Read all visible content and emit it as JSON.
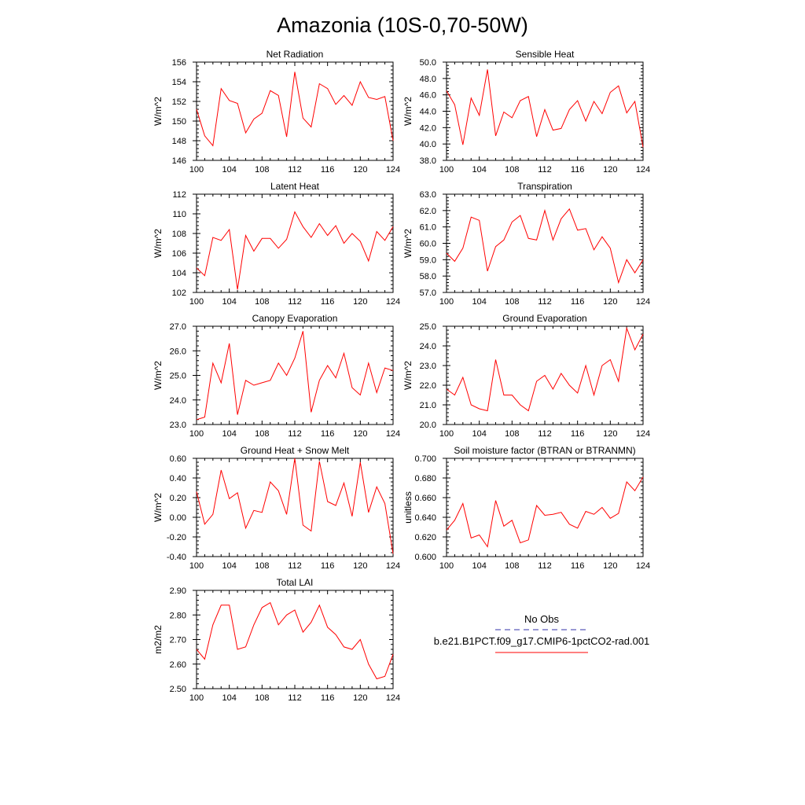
{
  "title": "Amazonia (10S-0,70-50W)",
  "colors": {
    "line": "#ff0000",
    "obs_line": "#3333aa",
    "axis": "#000000",
    "background": "#ffffff"
  },
  "legend": {
    "entries": [
      {
        "label": "No Obs",
        "color": "#3333aa",
        "style": "dashed"
      },
      {
        "label": "b.e21.B1PCT.f09_g17.CMIP6-1pctCO2-rad.001",
        "color": "#ff0000",
        "style": "solid"
      }
    ]
  },
  "chart_data": [
    {
      "type": "line",
      "title": "Net Radiation",
      "ylabel": "W/m^2",
      "xlim": [
        100,
        124
      ],
      "ylim": [
        146,
        156
      ],
      "xticks": [
        "100",
        "104",
        "108",
        "112",
        "116",
        "120",
        "124"
      ],
      "yticks": [
        "146",
        "148",
        "150",
        "152",
        "154",
        "156"
      ],
      "x": [
        100,
        101,
        102,
        103,
        104,
        105,
        106,
        107,
        108,
        109,
        110,
        111,
        112,
        113,
        114,
        115,
        116,
        117,
        118,
        119,
        120,
        121,
        122,
        123,
        124
      ],
      "series": [
        {
          "values": [
            151.2,
            148.5,
            147.5,
            153.3,
            152.1,
            151.8,
            148.8,
            150.2,
            150.8,
            153.1,
            152.6,
            148.4,
            155.0,
            150.3,
            149.4,
            153.8,
            153.3,
            151.7,
            152.6,
            151.6,
            154.0,
            152.4,
            152.2,
            152.5,
            148.0
          ]
        }
      ]
    },
    {
      "type": "line",
      "title": "Sensible Heat",
      "ylabel": "W/m^2",
      "xlim": [
        100,
        124
      ],
      "ylim": [
        38.0,
        50.0
      ],
      "xticks": [
        "100",
        "104",
        "108",
        "112",
        "116",
        "120",
        "124"
      ],
      "yticks": [
        "38.0",
        "40.0",
        "42.0",
        "44.0",
        "46.0",
        "48.0",
        "50.0"
      ],
      "x": [
        100,
        101,
        102,
        103,
        104,
        105,
        106,
        107,
        108,
        109,
        110,
        111,
        112,
        113,
        114,
        115,
        116,
        117,
        118,
        119,
        120,
        121,
        122,
        123,
        124
      ],
      "series": [
        {
          "values": [
            46.5,
            44.8,
            39.9,
            45.6,
            43.5,
            49.1,
            41.0,
            43.9,
            43.2,
            45.3,
            45.8,
            40.9,
            44.2,
            41.7,
            41.9,
            44.2,
            45.3,
            42.8,
            45.2,
            43.7,
            46.3,
            47.1,
            43.8,
            45.2,
            39.6
          ]
        }
      ]
    },
    {
      "type": "line",
      "title": "Latent Heat",
      "ylabel": "W/m^2",
      "xlim": [
        100,
        124
      ],
      "ylim": [
        102,
        112
      ],
      "xticks": [
        "100",
        "104",
        "108",
        "112",
        "116",
        "120",
        "124"
      ],
      "yticks": [
        "102",
        "104",
        "106",
        "108",
        "110",
        "112"
      ],
      "x": [
        100,
        101,
        102,
        103,
        104,
        105,
        106,
        107,
        108,
        109,
        110,
        111,
        112,
        113,
        114,
        115,
        116,
        117,
        118,
        119,
        120,
        121,
        122,
        123,
        124
      ],
      "series": [
        {
          "values": [
            104.5,
            103.7,
            107.6,
            107.3,
            108.4,
            102.3,
            107.8,
            106.2,
            107.5,
            107.5,
            106.5,
            107.4,
            110.2,
            108.7,
            107.6,
            109.0,
            107.8,
            108.8,
            107.0,
            108.0,
            107.2,
            105.2,
            108.2,
            107.3,
            108.7
          ]
        }
      ]
    },
    {
      "type": "line",
      "title": "Transpiration",
      "ylabel": "W/m^2",
      "xlim": [
        100,
        124
      ],
      "ylim": [
        57.0,
        63.0
      ],
      "xticks": [
        "100",
        "104",
        "108",
        "112",
        "116",
        "120",
        "124"
      ],
      "yticks": [
        "57.0",
        "58.0",
        "59.0",
        "60.0",
        "61.0",
        "62.0",
        "63.0"
      ],
      "x": [
        100,
        101,
        102,
        103,
        104,
        105,
        106,
        107,
        108,
        109,
        110,
        111,
        112,
        113,
        114,
        115,
        116,
        117,
        118,
        119,
        120,
        121,
        122,
        123,
        124
      ],
      "series": [
        {
          "values": [
            59.4,
            58.9,
            59.7,
            61.6,
            61.4,
            58.3,
            59.8,
            60.2,
            61.3,
            61.7,
            60.3,
            60.2,
            62.0,
            60.2,
            61.5,
            62.1,
            60.8,
            60.9,
            59.6,
            60.4,
            59.7,
            57.6,
            59.0,
            58.2,
            59.0
          ]
        }
      ]
    },
    {
      "type": "line",
      "title": "Canopy Evaporation",
      "ylabel": "W/m^2",
      "xlim": [
        100,
        124
      ],
      "ylim": [
        23.0,
        27.0
      ],
      "xticks": [
        "100",
        "104",
        "108",
        "112",
        "116",
        "120",
        "124"
      ],
      "yticks": [
        "23.0",
        "24.0",
        "25.0",
        "26.0",
        "27.0"
      ],
      "x": [
        100,
        101,
        102,
        103,
        104,
        105,
        106,
        107,
        108,
        109,
        110,
        111,
        112,
        113,
        114,
        115,
        116,
        117,
        118,
        119,
        120,
        121,
        122,
        123,
        124
      ],
      "series": [
        {
          "values": [
            23.2,
            23.3,
            25.5,
            24.7,
            26.3,
            23.4,
            24.8,
            24.6,
            24.7,
            24.8,
            25.5,
            25.0,
            25.7,
            26.8,
            23.5,
            24.8,
            25.4,
            24.9,
            25.9,
            24.5,
            24.2,
            25.5,
            24.3,
            25.3,
            25.2
          ]
        }
      ]
    },
    {
      "type": "line",
      "title": "Ground Evaporation",
      "ylabel": "W/m^2",
      "xlim": [
        100,
        124
      ],
      "ylim": [
        20.0,
        25.0
      ],
      "xticks": [
        "100",
        "104",
        "108",
        "112",
        "116",
        "120",
        "124"
      ],
      "yticks": [
        "20.0",
        "21.0",
        "22.0",
        "23.0",
        "24.0",
        "25.0"
      ],
      "x": [
        100,
        101,
        102,
        103,
        104,
        105,
        106,
        107,
        108,
        109,
        110,
        111,
        112,
        113,
        114,
        115,
        116,
        117,
        118,
        119,
        120,
        121,
        122,
        123,
        124
      ],
      "series": [
        {
          "values": [
            21.8,
            21.5,
            22.4,
            21.0,
            20.8,
            20.7,
            23.3,
            21.5,
            21.5,
            21.0,
            20.7,
            22.2,
            22.5,
            21.8,
            22.6,
            22.0,
            21.6,
            23.0,
            21.5,
            23.0,
            23.3,
            22.2,
            24.9,
            23.8,
            24.6
          ]
        }
      ]
    },
    {
      "type": "line",
      "title": "Ground Heat + Snow Melt",
      "ylabel": "W/m^2",
      "xlim": [
        100,
        124
      ],
      "ylim": [
        -0.4,
        0.6
      ],
      "xticks": [
        "100",
        "104",
        "108",
        "112",
        "116",
        "120",
        "124"
      ],
      "yticks": [
        "-0.40",
        "-0.20",
        "0.00",
        "0.20",
        "0.40",
        "0.60"
      ],
      "x": [
        100,
        101,
        102,
        103,
        104,
        105,
        106,
        107,
        108,
        109,
        110,
        111,
        112,
        113,
        114,
        115,
        116,
        117,
        118,
        119,
        120,
        121,
        122,
        123,
        124
      ],
      "series": [
        {
          "values": [
            0.26,
            -0.07,
            0.03,
            0.48,
            0.19,
            0.25,
            -0.11,
            0.07,
            0.05,
            0.36,
            0.27,
            0.03,
            0.6,
            -0.08,
            -0.14,
            0.57,
            0.16,
            0.12,
            0.35,
            0.01,
            0.56,
            0.05,
            0.31,
            0.14,
            -0.37
          ]
        }
      ]
    },
    {
      "type": "line",
      "title": "Soil moisture factor (BTRAN or BTRANMN)",
      "ylabel": "unitless",
      "xlim": [
        100,
        124
      ],
      "ylim": [
        0.6,
        0.7
      ],
      "xticks": [
        "100",
        "104",
        "108",
        "112",
        "116",
        "120",
        "124"
      ],
      "yticks": [
        "0.600",
        "0.620",
        "0.640",
        "0.660",
        "0.680",
        "0.700"
      ],
      "x": [
        100,
        101,
        102,
        103,
        104,
        105,
        106,
        107,
        108,
        109,
        110,
        111,
        112,
        113,
        114,
        115,
        116,
        117,
        118,
        119,
        120,
        121,
        122,
        123,
        124
      ],
      "series": [
        {
          "values": [
            0.627,
            0.637,
            0.654,
            0.619,
            0.622,
            0.61,
            0.657,
            0.631,
            0.637,
            0.614,
            0.617,
            0.652,
            0.642,
            0.643,
            0.645,
            0.633,
            0.629,
            0.646,
            0.643,
            0.65,
            0.639,
            0.644,
            0.676,
            0.667,
            0.681
          ]
        }
      ]
    },
    {
      "type": "line",
      "title": "Total LAI",
      "ylabel": "m2/m2",
      "xlim": [
        100,
        124
      ],
      "ylim": [
        2.5,
        2.9
      ],
      "xticks": [
        "100",
        "104",
        "108",
        "112",
        "116",
        "120",
        "124"
      ],
      "yticks": [
        "2.50",
        "2.60",
        "2.70",
        "2.80",
        "2.90"
      ],
      "x": [
        100,
        101,
        102,
        103,
        104,
        105,
        106,
        107,
        108,
        109,
        110,
        111,
        112,
        113,
        114,
        115,
        116,
        117,
        118,
        119,
        120,
        121,
        122,
        123,
        124
      ],
      "series": [
        {
          "values": [
            2.66,
            2.62,
            2.76,
            2.84,
            2.84,
            2.66,
            2.67,
            2.76,
            2.83,
            2.85,
            2.76,
            2.8,
            2.82,
            2.73,
            2.77,
            2.84,
            2.75,
            2.72,
            2.67,
            2.66,
            2.7,
            2.6,
            2.54,
            2.55,
            2.64
          ]
        }
      ]
    }
  ]
}
